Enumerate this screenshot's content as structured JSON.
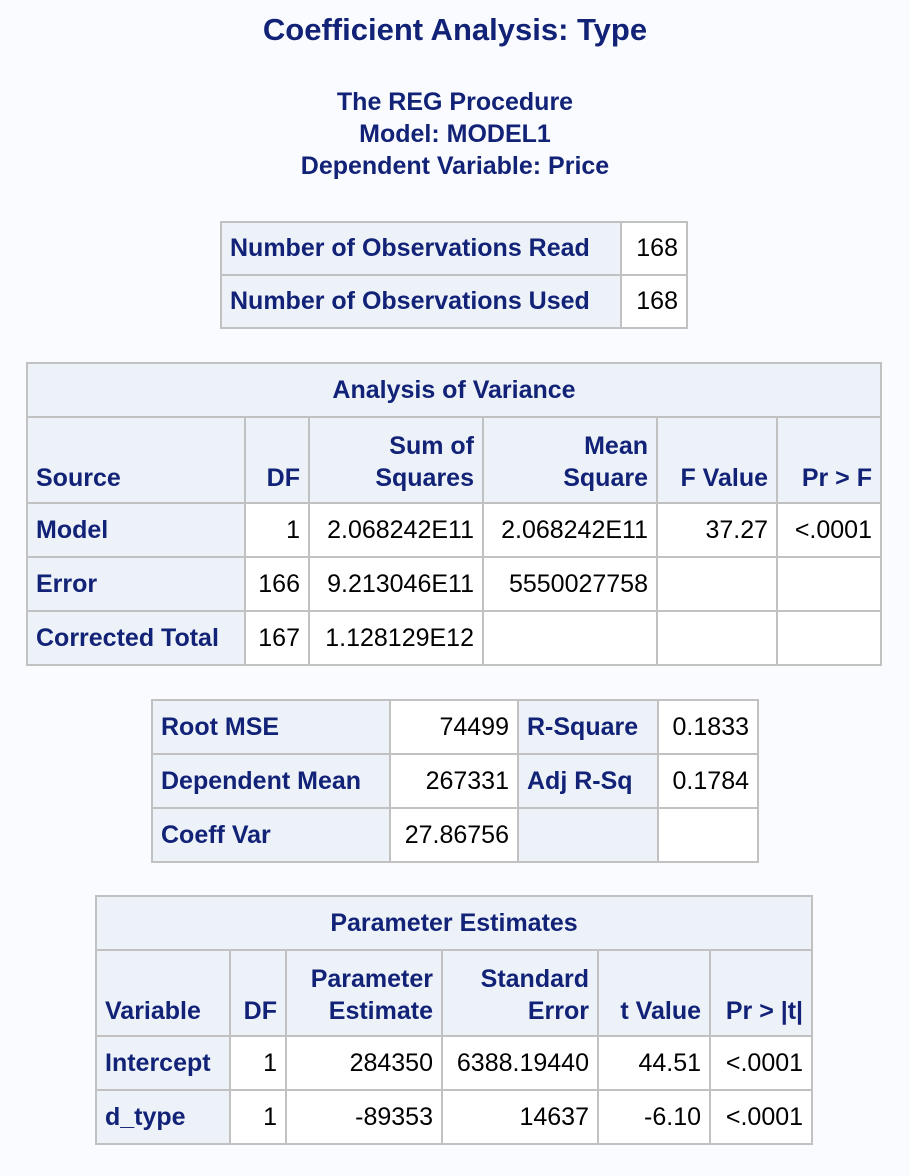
{
  "title": "Coefficient Analysis: Type",
  "subtitles": {
    "procedure": "The REG Procedure",
    "model": "Model: MODEL1",
    "dependent": "Dependent Variable: Price"
  },
  "observations": {
    "read_label": "Number of Observations Read",
    "read_value": "168",
    "used_label": "Number of Observations Used",
    "used_value": "168"
  },
  "anova": {
    "caption": "Analysis of Variance",
    "headers": {
      "source": "Source",
      "df": "DF",
      "ss_line1": "Sum of",
      "ss_line2": "Squares",
      "ms_line1": "Mean",
      "ms_line2": "Square",
      "f": "F Value",
      "p": "Pr > F"
    },
    "rows": [
      {
        "source": "Model",
        "df": "1",
        "ss": "2.068242E11",
        "ms": "2.068242E11",
        "f": "37.27",
        "p": "<.0001"
      },
      {
        "source": "Error",
        "df": "166",
        "ss": "9.213046E11",
        "ms": "5550027758",
        "f": "",
        "p": ""
      },
      {
        "source": "Corrected Total",
        "df": "167",
        "ss": "1.128129E12",
        "ms": "",
        "f": "",
        "p": ""
      }
    ]
  },
  "fit": {
    "root_mse_label": "Root MSE",
    "root_mse": "74499",
    "r_square_label": "R-Square",
    "r_square": "0.1833",
    "dep_mean_label": "Dependent Mean",
    "dep_mean": "267331",
    "adj_rsq_label": "Adj R-Sq",
    "adj_rsq": "0.1784",
    "coeff_var_label": "Coeff Var",
    "coeff_var": "27.86756"
  },
  "params": {
    "caption": "Parameter Estimates",
    "headers": {
      "variable": "Variable",
      "df": "DF",
      "pe_line1": "Parameter",
      "pe_line2": "Estimate",
      "se_line1": "Standard",
      "se_line2": "Error",
      "t": "t Value",
      "p": "Pr > |t|"
    },
    "rows": [
      {
        "variable": "Intercept",
        "df": "1",
        "estimate": "284350",
        "se": "6388.19440",
        "t": "44.51",
        "p": "<.0001"
      },
      {
        "variable": "d_type",
        "df": "1",
        "estimate": "-89353",
        "se": "14637",
        "t": "-6.10",
        "p": "<.0001"
      }
    ]
  }
}
